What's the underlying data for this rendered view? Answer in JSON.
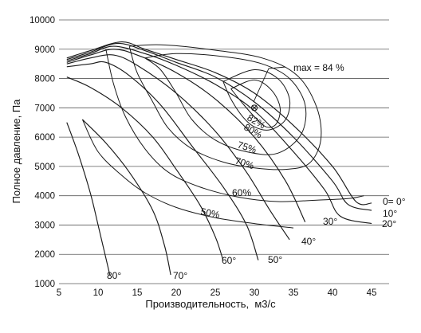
{
  "chart_data": {
    "type": "line",
    "title": "",
    "xlabel": "Производительность,  м3/с",
    "ylabel": "Полное давление, Па",
    "xlim": [
      5,
      45
    ],
    "ylim": [
      1000,
      10000
    ],
    "x_ticks": [
      "5",
      "10",
      "15",
      "20",
      "25",
      "30",
      "35",
      "40",
      "45"
    ],
    "y_ticks": [
      "1000",
      "2000",
      "3000",
      "4000",
      "5000",
      "6000",
      "7000",
      "8000",
      "9000",
      "10000"
    ],
    "grid": "horizontal",
    "max_label": "max = 84 %",
    "max_point": [
      30,
      7000
    ],
    "series": [
      {
        "name": "0= 0°",
        "kind": "blade_angle",
        "points": [
          [
            6,
            8700
          ],
          [
            9,
            8950
          ],
          [
            13,
            9250
          ],
          [
            16,
            9000
          ],
          [
            20,
            8650
          ],
          [
            25,
            8200
          ],
          [
            30,
            7500
          ],
          [
            35,
            6400
          ],
          [
            40,
            5000
          ],
          [
            43,
            3800
          ],
          [
            45,
            3750
          ]
        ]
      },
      {
        "name": "10°",
        "kind": "blade_angle",
        "points": [
          [
            6,
            8650
          ],
          [
            9,
            8900
          ],
          [
            12.5,
            9200
          ],
          [
            16,
            8950
          ],
          [
            20,
            8550
          ],
          [
            25,
            8050
          ],
          [
            30,
            7200
          ],
          [
            35,
            6000
          ],
          [
            40,
            4500
          ],
          [
            42,
            3700
          ],
          [
            45,
            3500
          ]
        ]
      },
      {
        "name": "20°",
        "kind": "blade_angle",
        "points": [
          [
            6,
            8600
          ],
          [
            9,
            8850
          ],
          [
            12,
            9100
          ],
          [
            16,
            8850
          ],
          [
            20,
            8450
          ],
          [
            25,
            7800
          ],
          [
            30,
            6900
          ],
          [
            35,
            5500
          ],
          [
            39,
            4200
          ],
          [
            41,
            3300
          ],
          [
            45,
            3050
          ]
        ]
      },
      {
        "name": "30°",
        "kind": "blade_angle",
        "points": [
          [
            6,
            8550
          ],
          [
            9,
            8800
          ],
          [
            12,
            9000
          ],
          [
            15,
            8800
          ],
          [
            20,
            8200
          ],
          [
            25,
            7300
          ],
          [
            30,
            6000
          ],
          [
            34,
            4500
          ],
          [
            36.5,
            3100
          ]
        ]
      },
      {
        "name": "40°",
        "kind": "blade_angle",
        "points": [
          [
            6,
            8500
          ],
          [
            9,
            8700
          ],
          [
            12,
            8800
          ],
          [
            15,
            8450
          ],
          [
            20,
            7500
          ],
          [
            25,
            6200
          ],
          [
            29,
            4800
          ],
          [
            32,
            3500
          ],
          [
            34.5,
            2500
          ]
        ]
      },
      {
        "name": "50°",
        "kind": "blade_angle",
        "points": [
          [
            6,
            8400
          ],
          [
            9,
            8500
          ],
          [
            11,
            8550
          ],
          [
            14,
            8100
          ],
          [
            18,
            7100
          ],
          [
            22,
            5700
          ],
          [
            26,
            4300
          ],
          [
            29,
            3000
          ],
          [
            30.5,
            1800
          ]
        ]
      },
      {
        "name": "60°",
        "kind": "blade_angle",
        "points": [
          [
            6,
            8050
          ],
          [
            9,
            7700
          ],
          [
            13,
            7000
          ],
          [
            17,
            6000
          ],
          [
            20,
            4900
          ],
          [
            23,
            3700
          ],
          [
            25,
            2600
          ],
          [
            26,
            1800
          ]
        ]
      },
      {
        "name": "70°",
        "kind": "blade_angle",
        "points": [
          [
            8,
            6600
          ],
          [
            11,
            5800
          ],
          [
            14,
            4800
          ],
          [
            17,
            3500
          ],
          [
            18.5,
            2300
          ],
          [
            19.3,
            1300
          ]
        ]
      },
      {
        "name": "80°",
        "kind": "blade_angle",
        "points": [
          [
            6,
            6500
          ],
          [
            7.5,
            5400
          ],
          [
            9,
            4100
          ],
          [
            10,
            3000
          ],
          [
            10.8,
            2100
          ],
          [
            11.5,
            1300
          ]
        ]
      },
      {
        "name": "82%",
        "kind": "efficiency",
        "points": [
          [
            27,
            7650
          ],
          [
            28.5,
            7150
          ],
          [
            30,
            6700
          ],
          [
            31.5,
            6350
          ],
          [
            32.8,
            6450
          ],
          [
            33.3,
            7000
          ],
          [
            32.2,
            7600
          ],
          [
            30,
            7950
          ],
          [
            27,
            7650
          ]
        ]
      },
      {
        "name": "80%",
        "kind": "efficiency",
        "points": [
          [
            26,
            7900
          ],
          [
            27,
            7300
          ],
          [
            28.5,
            6700
          ],
          [
            30,
            6350
          ],
          [
            32,
            6250
          ],
          [
            34,
            6600
          ],
          [
            34.5,
            7300
          ],
          [
            33,
            8000
          ],
          [
            30,
            8300
          ],
          [
            26,
            7900
          ]
        ]
      },
      {
        "name": "75%",
        "kind": "efficiency",
        "points": [
          [
            16,
            8700
          ],
          [
            18,
            8300
          ],
          [
            20,
            7500
          ],
          [
            22,
            6600
          ],
          [
            25,
            5900
          ],
          [
            29,
            5500
          ],
          [
            33,
            5450
          ],
          [
            36,
            6100
          ],
          [
            36.5,
            7100
          ],
          [
            34.5,
            8000
          ],
          [
            31,
            8500
          ],
          [
            26,
            8750
          ],
          [
            20,
            8850
          ],
          [
            16,
            8700
          ]
        ]
      },
      {
        "name": "70%",
        "kind": "efficiency",
        "points": [
          [
            14,
            9100
          ],
          [
            15,
            8200
          ],
          [
            17,
            7200
          ],
          [
            19,
            6300
          ],
          [
            22,
            5600
          ],
          [
            26,
            5150
          ],
          [
            30,
            4950
          ],
          [
            34,
            4900
          ],
          [
            37,
            5100
          ],
          [
            38.5,
            5900
          ],
          [
            38,
            7000
          ],
          [
            35.5,
            8100
          ],
          [
            31,
            8700
          ],
          [
            24,
            9000
          ],
          [
            18,
            9150
          ],
          [
            14,
            9100
          ]
        ]
      },
      {
        "name": "60%",
        "kind": "efficiency",
        "points": [
          [
            11,
            9000
          ],
          [
            12,
            7800
          ],
          [
            13.5,
            6700
          ],
          [
            16,
            5600
          ],
          [
            19,
            4800
          ],
          [
            23,
            4300
          ],
          [
            28,
            3950
          ],
          [
            33,
            3800
          ],
          [
            38,
            3850
          ],
          [
            42,
            3900
          ],
          [
            44,
            4000
          ]
        ]
      },
      {
        "name": "50%",
        "kind": "efficiency",
        "points": [
          [
            8,
            6600
          ],
          [
            10,
            5500
          ],
          [
            13,
            4700
          ],
          [
            16,
            4100
          ],
          [
            20,
            3600
          ],
          [
            25,
            3250
          ],
          [
            30,
            3050
          ],
          [
            35,
            2900
          ]
        ]
      }
    ]
  }
}
